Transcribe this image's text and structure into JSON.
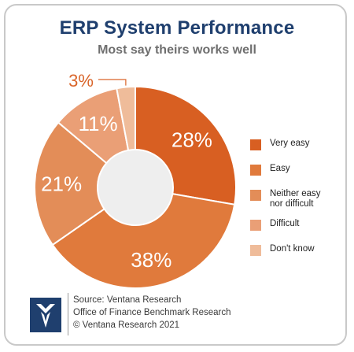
{
  "header": {
    "title": "ERP System Performance",
    "subtitle": "Most say theirs works well"
  },
  "chart_data": {
    "type": "pie",
    "variant": "donut",
    "title": "ERP System Performance",
    "subtitle": "Most say theirs works well",
    "categories": [
      "Very easy",
      "Easy",
      "Neither easy nor difficult",
      "Difficult",
      "Don't know"
    ],
    "values": [
      28,
      38,
      21,
      11,
      3
    ],
    "data_labels": [
      "28%",
      "38%",
      "21%",
      "11%",
      "3%"
    ],
    "colors": [
      "#d85f22",
      "#e07a3c",
      "#e38d58",
      "#ea9f76",
      "#efbc9a"
    ],
    "legend_position": "right"
  },
  "legend": {
    "items": [
      {
        "label": "Very easy",
        "color": "#d85f22"
      },
      {
        "label": "Easy",
        "color": "#e07a3c"
      },
      {
        "label": "Neither easy nor difficult",
        "color": "#e38d58"
      },
      {
        "label": "Difficult",
        "color": "#ea9f76"
      },
      {
        "label": "Don't know",
        "color": "#efbc9a"
      }
    ]
  },
  "footer": {
    "source_line": "Source: Ventana Research",
    "report_line": "Office of Finance Benchmark Research",
    "copyright_line": "© Ventana Research 2021",
    "logo_icon": "ventana-logo-icon"
  }
}
